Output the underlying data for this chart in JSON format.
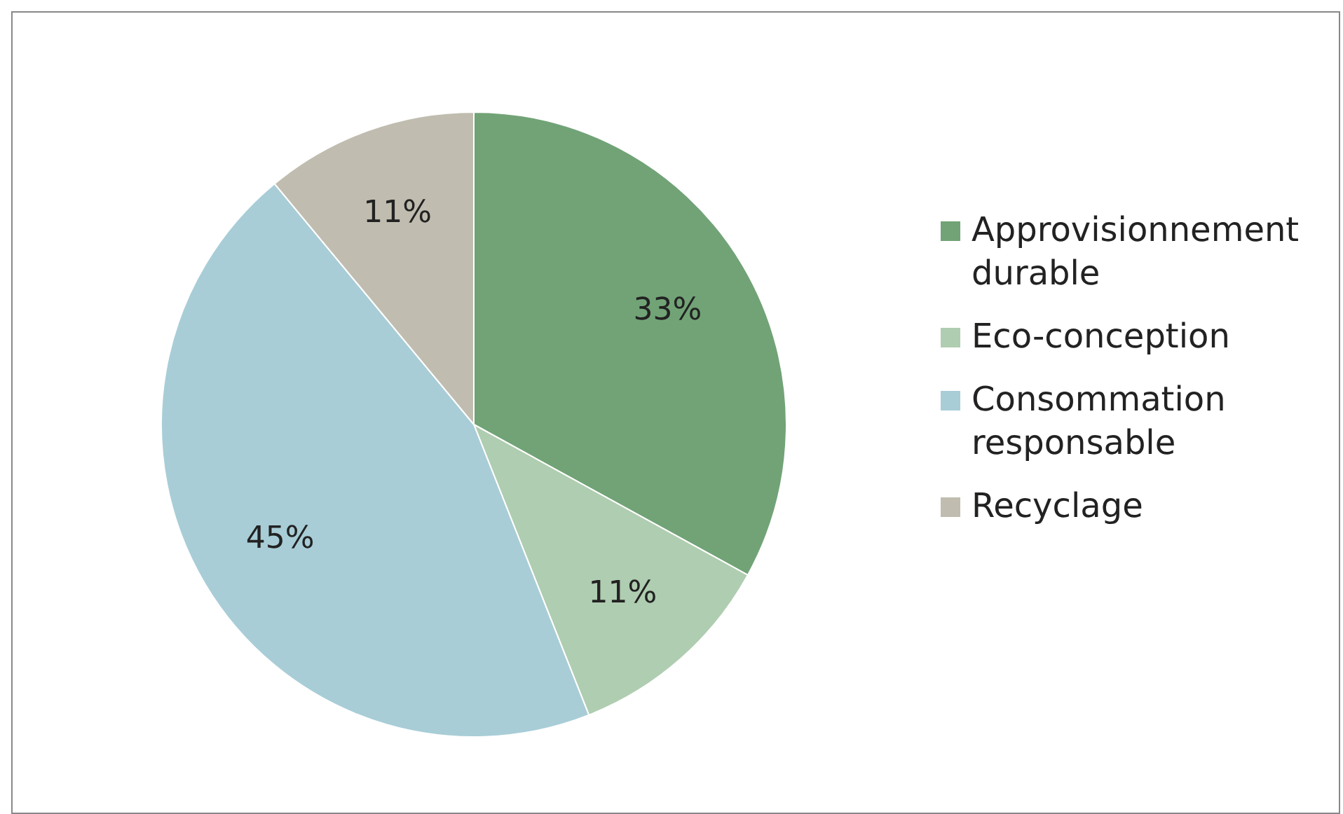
{
  "chart_data": {
    "type": "pie",
    "categories": [
      "Approvisionnement durable",
      "Eco-conception",
      "Consommation responsable",
      "Recyclage"
    ],
    "values": [
      33,
      11,
      45,
      11
    ],
    "colors": [
      "#71a376",
      "#afcdb0",
      "#a8cdd7",
      "#c0bdb0"
    ],
    "value_labels": [
      "33%",
      "11%",
      "45%",
      "11%"
    ],
    "legend": "right"
  }
}
